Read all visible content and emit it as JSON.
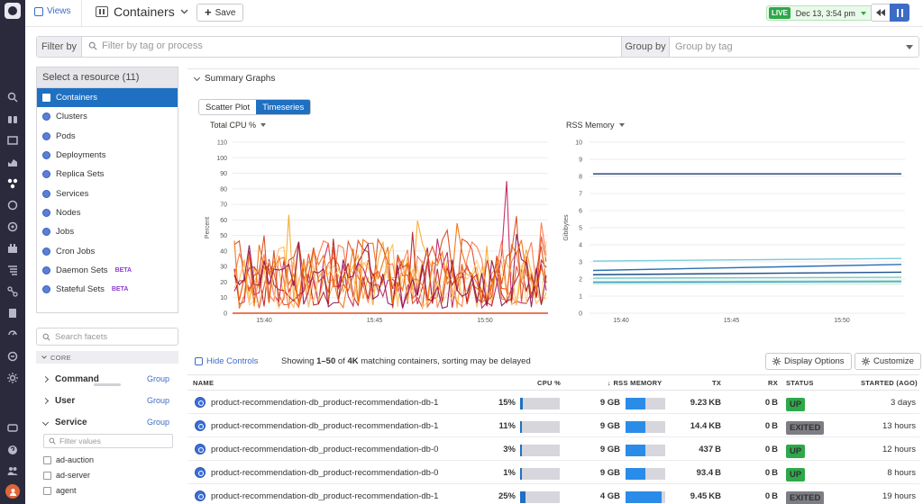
{
  "nav": {
    "icons": [
      "logo",
      "search-icon",
      "binoculars-icon",
      "dashboard-icon",
      "chart-icon",
      "infrastructure-icon",
      "apm-icon",
      "security-icon",
      "integrations-icon",
      "logs-icon",
      "network-icon",
      "notebook-icon",
      "synthetics-icon",
      "rum-icon",
      "settings-icon",
      "chat-icon",
      "help-icon",
      "team-icon",
      "user-avatar"
    ]
  },
  "topbar": {
    "views_label": "Views",
    "title": "Containers",
    "save_label": "Save",
    "live_label": "LIVE",
    "timestamp": "Dec 13, 3:54 pm"
  },
  "filter": {
    "label": "Filter by",
    "placeholder": "Filter by tag or process",
    "group_label": "Group by",
    "group_placeholder": "Group by tag"
  },
  "sidebar": {
    "resource_header": "Select a resource (11)",
    "resources": [
      {
        "label": "Containers",
        "selected": true
      },
      {
        "label": "Clusters"
      },
      {
        "label": "Pods"
      },
      {
        "label": "Deployments"
      },
      {
        "label": "Replica Sets"
      },
      {
        "label": "Services"
      },
      {
        "label": "Nodes"
      },
      {
        "label": "Jobs"
      },
      {
        "label": "Cron Jobs"
      },
      {
        "label": "Daemon Sets",
        "beta": "BETA"
      },
      {
        "label": "Stateful Sets",
        "beta": "BETA"
      }
    ],
    "search_placeholder": "Search facets",
    "core_label": "CORE",
    "facets": [
      {
        "label": "Command",
        "group": "Group"
      },
      {
        "label": "User",
        "group": "Group"
      },
      {
        "label": "Service",
        "group": "Group"
      }
    ],
    "filter_values_placeholder": "Filter values",
    "values": [
      "ad-auction",
      "ad-server",
      "agent"
    ]
  },
  "summary": {
    "header": "Summary Graphs",
    "tabs": [
      "Scatter Plot",
      "Timeseries"
    ],
    "active_tab": "Timeseries"
  },
  "chart_data": [
    {
      "type": "line",
      "title": "Total CPU %",
      "ylabel": "Percent",
      "ylim": [
        0,
        110
      ],
      "yticks": [
        0,
        10,
        20,
        30,
        40,
        50,
        60,
        70,
        80,
        90,
        100,
        110
      ],
      "xticks": [
        "15:40",
        "15:45",
        "15:50"
      ],
      "colors": [
        "#f5a623",
        "#e8491d",
        "#c2185b",
        "#ff7043",
        "#b71c1c",
        "#ffb74d",
        "#d84315",
        "#ffcc80",
        "#880e4f",
        "#ef6c00"
      ],
      "series_count": 10,
      "peak_value": 85
    },
    {
      "type": "line",
      "title": "RSS Memory",
      "ylabel": "Gibibytes",
      "ylim": [
        0,
        10
      ],
      "yticks": [
        0,
        1,
        2,
        3,
        4,
        5,
        6,
        7,
        8,
        9,
        10
      ],
      "xticks": [
        "15:40",
        "15:45",
        "15:50"
      ],
      "series": [
        {
          "values": [
            8.15,
            8.15
          ],
          "color": "#1e3a6e"
        },
        {
          "values": [
            3.05,
            3.2
          ],
          "color": "#7ecbd9"
        },
        {
          "values": [
            2.5,
            2.85
          ],
          "color": "#2a6fb5"
        },
        {
          "values": [
            2.25,
            2.4
          ],
          "color": "#1e4f8a"
        },
        {
          "values": [
            2.05,
            2.1
          ],
          "color": "#6fd0c5"
        },
        {
          "values": [
            1.85,
            1.9
          ],
          "color": "#a5dfc9"
        },
        {
          "values": [
            1.8,
            1.85
          ],
          "color": "#4aa3c9"
        }
      ]
    }
  ],
  "controls": {
    "hide_label": "Hide Controls",
    "showing_pre": "Showing ",
    "showing_range": "1–50",
    "showing_mid": " of ",
    "showing_total": "4K",
    "showing_post": " matching containers, sorting may be delayed",
    "display_options": "Display Options",
    "customize": "Customize"
  },
  "table": {
    "columns": [
      "NAME",
      "CPU %",
      "RSS MEMORY",
      "TX",
      "RX",
      "STATUS",
      "STARTED (AGO)"
    ],
    "rows": [
      {
        "name": "product-recommendation-db_product-recommendation-db-1",
        "cpu": "15%",
        "cpu_frac": 0.15,
        "mem": "9 GB",
        "mem_frac": 0.5,
        "tx": "9.23",
        "tx_unit": "KB",
        "rx": "0",
        "rx_unit": "B",
        "status": "UP",
        "started": "3 days"
      },
      {
        "name": "product-recommendation-db_product-recommendation-db-1",
        "cpu": "11%",
        "cpu_frac": 0.11,
        "mem": "9 GB",
        "mem_frac": 0.5,
        "tx": "14.4",
        "tx_unit": "KB",
        "rx": "0",
        "rx_unit": "B",
        "status": "EXITED",
        "started": "13 hours"
      },
      {
        "name": "product-recommendation-db_product-recommendation-db-0",
        "cpu": "3%",
        "cpu_frac": 0.03,
        "mem": "9 GB",
        "mem_frac": 0.5,
        "tx": "437",
        "tx_unit": "B",
        "rx": "0",
        "rx_unit": "B",
        "status": "UP",
        "started": "12 hours"
      },
      {
        "name": "product-recommendation-db_product-recommendation-db-0",
        "cpu": "1%",
        "cpu_frac": 0.01,
        "mem": "9 GB",
        "mem_frac": 0.5,
        "tx": "93.4",
        "tx_unit": "B",
        "rx": "0",
        "rx_unit": "B",
        "status": "UP",
        "started": "8 hours"
      },
      {
        "name": "product-recommendation-db_product-recommendation-db-1",
        "cpu": "25%",
        "cpu_frac": 0.25,
        "mem": "4 GB",
        "mem_frac": 0.9,
        "tx": "9.45",
        "tx_unit": "KB",
        "rx": "0",
        "rx_unit": "B",
        "status": "EXITED",
        "started": "19 hours"
      }
    ]
  }
}
